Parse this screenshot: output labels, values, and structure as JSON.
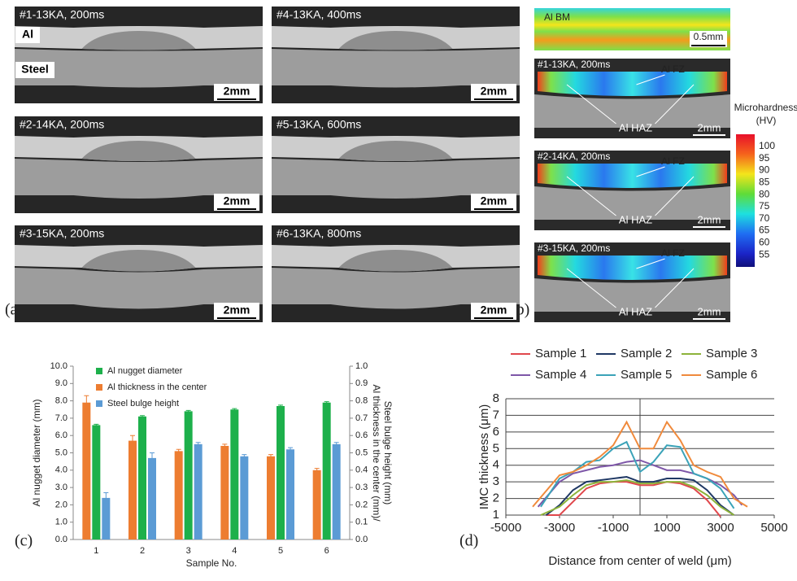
{
  "panel_a": {
    "label": "(a)",
    "al_label": "Al",
    "steel_label": "Steel",
    "images": [
      {
        "title": "#1-13KA, 200ms",
        "scale": "2mm"
      },
      {
        "title": "#4-13KA, 400ms",
        "scale": "2mm"
      },
      {
        "title": "#2-14KA, 200ms",
        "scale": "2mm"
      },
      {
        "title": "#5-13KA, 600ms",
        "scale": "2mm"
      },
      {
        "title": "#3-15KA, 200ms",
        "scale": "2mm"
      },
      {
        "title": "#6-13KA, 800ms",
        "scale": "2mm"
      }
    ]
  },
  "panel_b": {
    "label": "(b)",
    "base_metal": {
      "label": "Al BM",
      "scale": "0.5mm"
    },
    "maps": [
      {
        "title": "#1-13KA, 200ms",
        "fz": "Al FZ",
        "haz": "Al HAZ",
        "scale": "2mm"
      },
      {
        "title": "#2-14KA, 200ms",
        "fz": "Al FZ",
        "haz": "Al HAZ",
        "scale": "2mm"
      },
      {
        "title": "#3-15KA, 200ms",
        "fz": "Al FZ",
        "haz": "Al HAZ",
        "scale": "2mm"
      }
    ],
    "colorbar": {
      "title": [
        "Microhardness",
        "(HV)"
      ],
      "ticks": [
        100,
        95,
        90,
        85,
        80,
        75,
        70,
        65,
        60,
        55
      ]
    }
  },
  "chart_data": [
    {
      "type": "bar",
      "label": "(c)",
      "xlabel": "Sample No.",
      "ylabel": "Al nugget diameter (mm)",
      "y2label": [
        "Al thickness in the center (mm)/",
        "Steel bulge height (mm)"
      ],
      "categories": [
        "1",
        "2",
        "3",
        "4",
        "5",
        "6"
      ],
      "ylim": [
        0,
        10
      ],
      "yticks": [
        {
          "value": 0,
          "label": "0.0"
        },
        {
          "value": 1,
          "label": "1.0"
        },
        {
          "value": 2,
          "label": "2.0"
        },
        {
          "value": 3,
          "label": "3.0"
        },
        {
          "value": 4,
          "label": "4.0"
        },
        {
          "value": 5,
          "label": "5.0"
        },
        {
          "value": 6,
          "label": "6.0"
        },
        {
          "value": 7,
          "label": "7.0"
        },
        {
          "value": 8,
          "label": "8.0"
        },
        {
          "value": 9,
          "label": "9.0"
        },
        {
          "value": 10,
          "label": "10.0"
        }
      ],
      "y2lim": [
        0,
        1
      ],
      "y2ticks": [
        {
          "value": 0,
          "label": "0.0"
        },
        0.1,
        0.2,
        0.3,
        0.4,
        0.5,
        0.6,
        0.7,
        0.8,
        0.9,
        {
          "value": 1,
          "label": "1.0"
        }
      ],
      "legend": "upper left",
      "series": [
        {
          "name": "Al nugget diameter",
          "color": "#1db04b",
          "values": [
            6.6,
            7.1,
            7.4,
            7.5,
            7.7,
            7.9
          ],
          "errors": [
            0.05,
            0.05,
            0.05,
            0.05,
            0.05,
            0.05
          ]
        },
        {
          "name": "Al thickness in the center",
          "color": "#ed7d31",
          "axis": "y2",
          "values": [
            0.79,
            0.57,
            0.51,
            0.54,
            0.48,
            0.4
          ],
          "errors": [
            0.04,
            0.03,
            0.01,
            0.01,
            0.01,
            0.01
          ]
        },
        {
          "name": "Steel bulge height",
          "color": "#5b9bd5",
          "axis": "y2",
          "values": [
            0.24,
            0.47,
            0.55,
            0.48,
            0.52,
            0.55
          ],
          "errors": [
            0.03,
            0.03,
            0.01,
            0.01,
            0.01,
            0.01
          ]
        }
      ]
    },
    {
      "type": "line",
      "label": "(d)",
      "xlabel": "Distance from center of weld (μm)",
      "ylabel": "IMC thickness (μm)",
      "xlim": [
        -5000,
        5000
      ],
      "xticks": [
        -5000,
        -3000,
        -1000,
        1000,
        3000,
        5000
      ],
      "ylim": [
        1,
        8
      ],
      "yticks": [
        1,
        2,
        3,
        4,
        5,
        6,
        7,
        8
      ],
      "grid": true,
      "legend": "top",
      "series": [
        {
          "name": "Sample 1",
          "color": "#e0474c",
          "x": [
            -3500,
            -3000,
            -2500,
            -2000,
            -1500,
            -1000,
            -500,
            0,
            500,
            1000,
            1500,
            2000,
            2500,
            3000
          ],
          "values": [
            1.0,
            1.0,
            1.8,
            2.6,
            2.9,
            3.0,
            3.0,
            2.8,
            2.8,
            3.0,
            2.9,
            2.6,
            1.9,
            0.9
          ]
        },
        {
          "name": "Sample 2",
          "color": "#1f3864",
          "x": [
            -3500,
            -3000,
            -2500,
            -2000,
            -1500,
            -1000,
            -500,
            0,
            500,
            1000,
            1500,
            2000,
            2500,
            3000,
            3500
          ],
          "values": [
            1.0,
            1.6,
            2.5,
            3.0,
            3.1,
            3.2,
            3.3,
            3.0,
            3.0,
            3.2,
            3.2,
            3.1,
            2.5,
            1.6,
            1.0
          ]
        },
        {
          "name": "Sample 3",
          "color": "#8db33a",
          "x": [
            -3700,
            -3000,
            -2500,
            -2000,
            -1500,
            -1000,
            -500,
            0,
            500,
            1000,
            1500,
            2000,
            2500,
            3000,
            3500
          ],
          "values": [
            1.0,
            1.5,
            2.2,
            2.8,
            3.0,
            3.0,
            3.1,
            2.9,
            2.9,
            3.0,
            3.0,
            2.7,
            2.2,
            1.5,
            1.0
          ]
        },
        {
          "name": "Sample 4",
          "color": "#7e57a8",
          "x": [
            -3800,
            -3000,
            -2500,
            -2000,
            -1500,
            -1000,
            -500,
            0,
            500,
            1000,
            1500,
            2000,
            2500,
            3000,
            3500,
            3800
          ],
          "values": [
            1.5,
            3.0,
            3.5,
            3.7,
            3.9,
            4.0,
            4.2,
            4.3,
            4.0,
            3.7,
            3.7,
            3.5,
            3.2,
            2.8,
            2.2,
            1.6
          ]
        },
        {
          "name": "Sample 5",
          "color": "#3ba3b8",
          "x": [
            -3700,
            -3000,
            -2500,
            -2000,
            -1500,
            -1000,
            -500,
            0,
            500,
            1000,
            1500,
            2000,
            2500,
            3000,
            3500
          ],
          "values": [
            1.5,
            3.2,
            3.6,
            4.2,
            4.3,
            5.0,
            5.4,
            3.6,
            4.2,
            5.2,
            5.1,
            3.5,
            3.2,
            2.6,
            1.4
          ]
        },
        {
          "name": "Sample 6",
          "color": "#f08a3c",
          "x": [
            -4000,
            -3000,
            -2500,
            -2000,
            -1500,
            -1000,
            -500,
            0,
            500,
            1000,
            1500,
            2000,
            2500,
            3000,
            3500,
            4000
          ],
          "values": [
            1.5,
            3.4,
            3.6,
            4.0,
            4.5,
            5.2,
            6.6,
            5.0,
            5.0,
            6.6,
            5.5,
            4.0,
            3.6,
            3.3,
            2.0,
            1.5
          ]
        }
      ]
    }
  ]
}
